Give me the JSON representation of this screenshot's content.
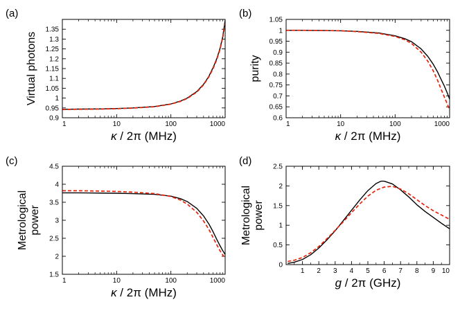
{
  "colors": {
    "solid": "#000000",
    "dashed": "#e8220a",
    "frame": "#000000"
  },
  "chart_data": [
    {
      "type": "line",
      "panel_label": "(a)",
      "xscale": "log",
      "xlim": [
        1,
        1000
      ],
      "ylim": [
        0.9,
        1.4
      ],
      "xticks": [
        1,
        10,
        100,
        1000
      ],
      "xtick_labels": [
        "1",
        "10",
        "100",
        "1000"
      ],
      "yticks": [
        0.9,
        0.95,
        1,
        1.05,
        1.1,
        1.15,
        1.2,
        1.25,
        1.3,
        1.35
      ],
      "ytick_labels": [
        "0.9",
        "0.95",
        "1",
        "1.05",
        "1.1",
        "1.15",
        "1.2",
        "1.25",
        "1.3",
        "1.35"
      ],
      "xlabel_sym": "κ",
      "xlabel_rest": " / 2π (MHz)",
      "ylabel_lines": [
        "Virtual photons"
      ],
      "series": [
        {
          "name": "solid",
          "style": "solid",
          "x": [
            1,
            2,
            5,
            10,
            20,
            50,
            100,
            150,
            200,
            300,
            400,
            500,
            600,
            700,
            800,
            900,
            1000
          ],
          "y": [
            0.943,
            0.944,
            0.945,
            0.947,
            0.95,
            0.957,
            0.97,
            0.985,
            1.0,
            1.033,
            1.07,
            1.11,
            1.155,
            1.2,
            1.25,
            1.31,
            1.395
          ]
        },
        {
          "name": "dashed",
          "style": "dashed",
          "x": [
            1,
            2,
            5,
            10,
            20,
            50,
            100,
            150,
            200,
            300,
            400,
            500,
            600,
            700,
            800,
            900,
            1000
          ],
          "y": [
            0.942,
            0.943,
            0.944,
            0.946,
            0.949,
            0.956,
            0.969,
            0.983,
            0.998,
            1.03,
            1.067,
            1.107,
            1.15,
            1.195,
            1.245,
            1.305,
            1.38
          ]
        }
      ]
    },
    {
      "type": "line",
      "panel_label": "(b)",
      "xscale": "log",
      "xlim": [
        1,
        1000
      ],
      "ylim": [
        0.6,
        1.05
      ],
      "xticks": [
        1,
        10,
        100,
        1000
      ],
      "xtick_labels": [
        "1",
        "10",
        "100",
        "1000"
      ],
      "yticks": [
        0.6,
        0.65,
        0.7,
        0.75,
        0.8,
        0.85,
        0.9,
        0.95,
        1,
        1.05
      ],
      "ytick_labels": [
        "0.6",
        "0.65",
        "0.7",
        "0.75",
        "0.8",
        "0.85",
        "0.9",
        "0.95",
        "1",
        "1.05"
      ],
      "xlabel_sym": "κ",
      "xlabel_rest": " / 2π (MHz)",
      "ylabel_lines": [
        "purity"
      ],
      "series": [
        {
          "name": "solid",
          "style": "solid",
          "x": [
            1,
            2,
            5,
            10,
            20,
            50,
            100,
            150,
            200,
            300,
            400,
            500,
            600,
            700,
            800,
            900,
            1000
          ],
          "y": [
            1.0,
            1.0,
            0.999,
            0.998,
            0.995,
            0.988,
            0.975,
            0.962,
            0.948,
            0.915,
            0.88,
            0.845,
            0.81,
            0.775,
            0.745,
            0.715,
            0.685
          ]
        },
        {
          "name": "dashed",
          "style": "dashed",
          "x": [
            1,
            2,
            5,
            10,
            20,
            50,
            100,
            150,
            200,
            300,
            400,
            500,
            600,
            700,
            800,
            900,
            1000
          ],
          "y": [
            1.0,
            1.0,
            0.999,
            0.998,
            0.994,
            0.986,
            0.972,
            0.957,
            0.94,
            0.9,
            0.858,
            0.815,
            0.772,
            0.73,
            0.695,
            0.665,
            0.635
          ]
        }
      ]
    },
    {
      "type": "line",
      "panel_label": "(c)",
      "xscale": "log",
      "xlim": [
        1,
        1000
      ],
      "ylim": [
        1.5,
        4.5
      ],
      "xticks": [
        1,
        10,
        100,
        1000
      ],
      "xtick_labels": [
        "1",
        "10",
        "100",
        "1000"
      ],
      "yticks": [
        1.5,
        2,
        2.5,
        3,
        3.5,
        4,
        4.5
      ],
      "ytick_labels": [
        "1.5",
        "2",
        "2.5",
        "3",
        "3.5",
        "4",
        "4.5"
      ],
      "xlabel_sym": "κ",
      "xlabel_rest": " / 2π (MHz)",
      "ylabel_lines": [
        "Metrological",
        "power"
      ],
      "series": [
        {
          "name": "solid",
          "style": "solid",
          "x": [
            1,
            2,
            5,
            10,
            20,
            50,
            100,
            150,
            200,
            300,
            400,
            500,
            600,
            700,
            800,
            900,
            1000
          ],
          "y": [
            3.76,
            3.76,
            3.755,
            3.75,
            3.74,
            3.72,
            3.67,
            3.6,
            3.52,
            3.33,
            3.12,
            2.9,
            2.68,
            2.47,
            2.3,
            2.16,
            2.05
          ]
        },
        {
          "name": "dashed",
          "style": "dashed",
          "x": [
            1,
            2,
            5,
            10,
            20,
            50,
            100,
            150,
            200,
            300,
            400,
            500,
            600,
            700,
            800,
            900,
            1000
          ],
          "y": [
            3.82,
            3.82,
            3.81,
            3.8,
            3.78,
            3.74,
            3.66,
            3.56,
            3.45,
            3.22,
            2.98,
            2.75,
            2.52,
            2.32,
            2.16,
            2.04,
            1.95
          ]
        }
      ]
    },
    {
      "type": "line",
      "panel_label": "(d)",
      "xscale": "linear",
      "xlim": [
        0,
        10
      ],
      "ylim": [
        0,
        2.5
      ],
      "xticks": [
        1,
        2,
        3,
        4,
        5,
        6,
        7,
        8,
        9,
        10
      ],
      "xtick_labels": [
        "1",
        "2",
        "3",
        "4",
        "5",
        "6",
        "7",
        "8",
        "9",
        "10"
      ],
      "yticks": [
        0,
        0.5,
        1,
        1.5,
        2,
        2.5
      ],
      "ytick_labels": [
        "0",
        "0.5",
        "1",
        "1.5",
        "2",
        "2.5"
      ],
      "xlabel_sym": "g",
      "xlabel_rest": " / 2π (GHz)",
      "ylabel_lines": [
        "Metrological",
        "power"
      ],
      "series": [
        {
          "name": "solid",
          "style": "solid",
          "x": [
            0.1,
            0.5,
            1,
            1.5,
            2,
            2.5,
            3,
            3.5,
            4,
            4.5,
            5,
            5.5,
            5.8,
            6,
            6.5,
            7,
            7.5,
            8,
            8.5,
            9,
            9.5,
            10
          ],
          "y": [
            0.03,
            0.06,
            0.13,
            0.25,
            0.42,
            0.63,
            0.86,
            1.12,
            1.38,
            1.64,
            1.88,
            2.06,
            2.12,
            2.12,
            2.05,
            1.9,
            1.72,
            1.52,
            1.35,
            1.2,
            1.05,
            0.91
          ]
        },
        {
          "name": "dashed",
          "style": "dashed",
          "x": [
            0.1,
            0.5,
            1,
            1.5,
            2,
            2.5,
            3,
            3.5,
            4,
            4.5,
            5,
            5.5,
            6,
            6.5,
            7,
            7.5,
            8,
            8.5,
            9,
            9.5,
            10
          ],
          "y": [
            0.08,
            0.11,
            0.18,
            0.3,
            0.46,
            0.66,
            0.87,
            1.09,
            1.32,
            1.54,
            1.74,
            1.89,
            1.97,
            1.99,
            1.92,
            1.8,
            1.65,
            1.5,
            1.37,
            1.26,
            1.15
          ]
        }
      ]
    }
  ]
}
